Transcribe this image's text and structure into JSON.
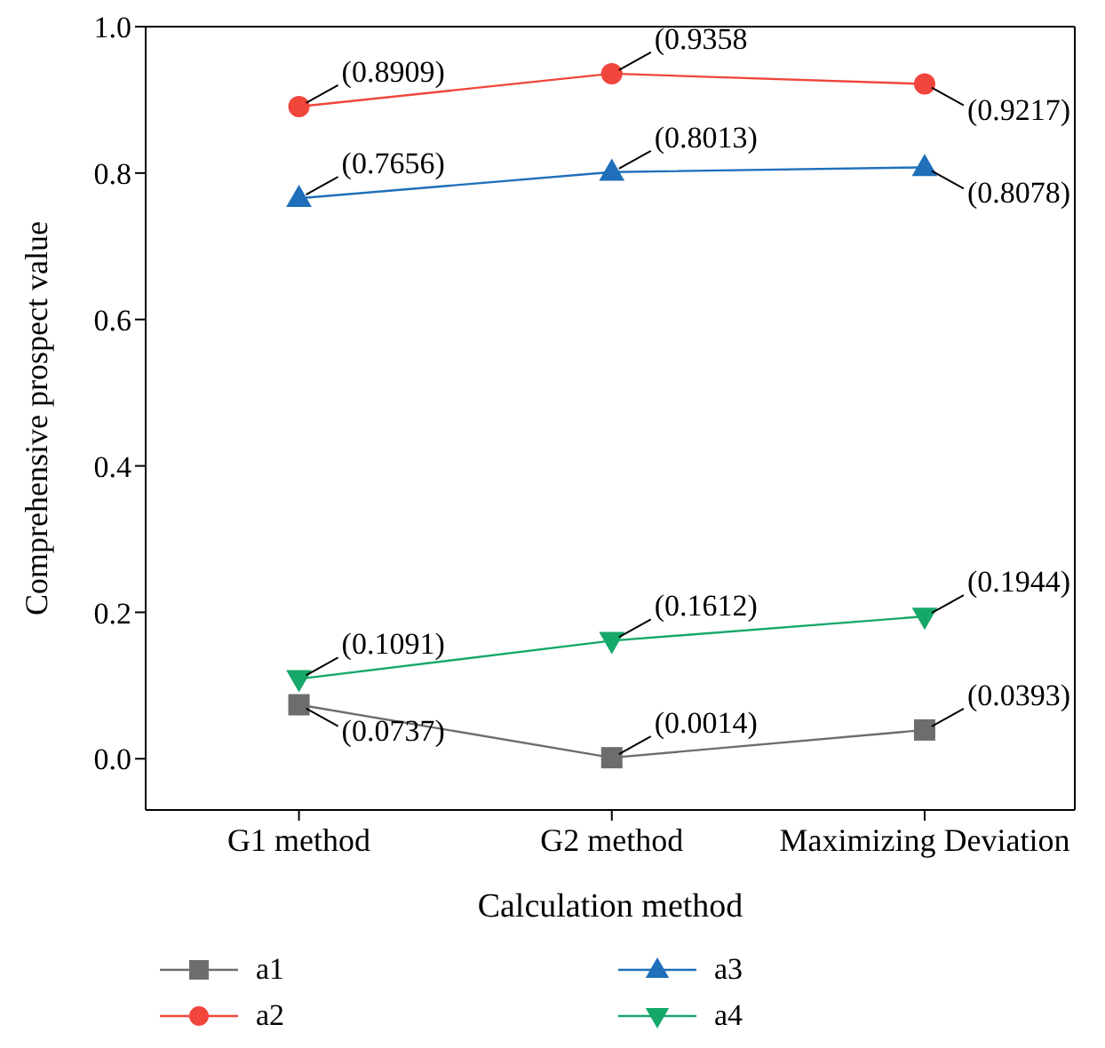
{
  "chart_data": {
    "type": "line",
    "xlabel": "Calculation method",
    "ylabel": "Comprehensive prospect value",
    "categories": [
      "G1 method",
      "G2 method",
      "Maximizing Deviation"
    ],
    "ylim": [
      -0.07,
      1.0
    ],
    "yticks": [
      {
        "value": 0,
        "label": "0.0"
      },
      {
        "value": 0.2,
        "label": "0.2"
      },
      {
        "value": 0.4,
        "label": "0.4"
      },
      {
        "value": 0.6,
        "label": "0.6"
      },
      {
        "value": 0.8,
        "label": "0.8"
      },
      {
        "value": 1.0,
        "label": "1.0"
      }
    ],
    "grid": false,
    "legend": "bottom",
    "line_style": "solid",
    "series": [
      {
        "name": "a1",
        "color": "#6d6d6d",
        "marker": "square",
        "values": [
          0.0737,
          0.0014,
          0.0393
        ],
        "value_labels": [
          "(0.0737)",
          "(0.0014)",
          "(0.0393)"
        ]
      },
      {
        "name": "a2",
        "color": "#f0463c",
        "marker": "circle",
        "values": [
          0.8909,
          0.9358,
          0.9217
        ],
        "value_labels": [
          "(0.8909)",
          "(0.9358",
          "(0.9217)"
        ]
      },
      {
        "name": "a3",
        "color": "#1f6fba",
        "marker": "triangle",
        "values": [
          0.7656,
          0.8013,
          0.8078
        ],
        "value_labels": [
          "(0.7656)",
          "(0.8013)",
          "(0.8078)"
        ]
      },
      {
        "name": "a4",
        "color": "#16a86a",
        "marker": "triangle-down",
        "values": [
          0.1091,
          0.1612,
          0.1944
        ],
        "value_labels": [
          "(0.1091)",
          "(0.1612)",
          "(0.1944)"
        ]
      }
    ]
  }
}
